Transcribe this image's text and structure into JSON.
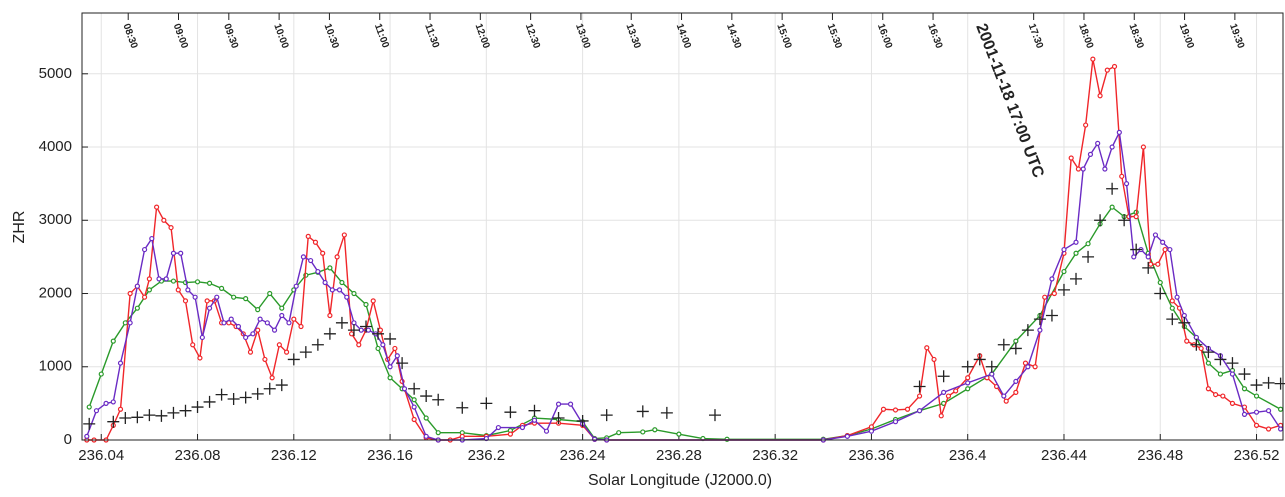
{
  "chart_data": {
    "type": "line",
    "xlabel": "Solar Longitude (J2000.0)",
    "ylabel": "ZHR",
    "annotation": "2001-11-18 17:00 UTC",
    "xlim": [
      236.032,
      236.531
    ],
    "ylim": [
      0,
      5830
    ],
    "xticks": [
      236.04,
      236.08,
      236.12,
      236.16,
      236.2,
      236.24,
      236.28,
      236.32,
      236.36,
      236.4,
      236.44,
      236.48,
      236.52
    ],
    "yticks": [
      0,
      1000,
      2000,
      3000,
      4000,
      5000
    ],
    "x2ticks": [
      {
        "value": 236.0512,
        "label": "08:30"
      },
      {
        "value": 236.0721,
        "label": "09:00"
      },
      {
        "value": 236.093,
        "label": "09:30"
      },
      {
        "value": 236.1139,
        "label": "10:00"
      },
      {
        "value": 236.1348,
        "label": "10:30"
      },
      {
        "value": 236.1557,
        "label": "11:00"
      },
      {
        "value": 236.1766,
        "label": "11:30"
      },
      {
        "value": 236.1975,
        "label": "12:00"
      },
      {
        "value": 236.2184,
        "label": "12:30"
      },
      {
        "value": 236.2393,
        "label": "13:00"
      },
      {
        "value": 236.2602,
        "label": "13:30"
      },
      {
        "value": 236.2811,
        "label": "14:00"
      },
      {
        "value": 236.302,
        "label": "14:30"
      },
      {
        "value": 236.3229,
        "label": "15:00"
      },
      {
        "value": 236.3438,
        "label": "15:30"
      },
      {
        "value": 236.3647,
        "label": "16:00"
      },
      {
        "value": 236.3856,
        "label": "16:30"
      },
      {
        "value": 236.4274,
        "label": "17:30"
      },
      {
        "value": 236.4483,
        "label": "18:00"
      },
      {
        "value": 236.4692,
        "label": "18:30"
      },
      {
        "value": 236.4901,
        "label": "19:00"
      },
      {
        "value": 236.511,
        "label": "19:30"
      }
    ],
    "grid": true,
    "series": [
      {
        "type": "line",
        "color": "#2a9a2a",
        "x": [
          236.035,
          236.04,
          236.045,
          236.05,
          236.055,
          236.06,
          236.065,
          236.07,
          236.075,
          236.08,
          236.085,
          236.09,
          236.095,
          236.1,
          236.105,
          236.11,
          236.115,
          236.12,
          236.125,
          236.13,
          236.135,
          236.14,
          236.145,
          236.15,
          236.155,
          236.16,
          236.165,
          236.17,
          236.175,
          236.18,
          236.19,
          236.2,
          236.21,
          236.22,
          236.23,
          236.24,
          236.245,
          236.25,
          236.255,
          236.265,
          236.27,
          236.28,
          236.29,
          236.3,
          236.34,
          236.35,
          236.36,
          236.37,
          236.38,
          236.39,
          236.4,
          236.41,
          236.42,
          236.43,
          236.44,
          236.445,
          236.45,
          236.455,
          236.46,
          236.465,
          236.47,
          236.475,
          236.48,
          236.485,
          236.49,
          236.495,
          236.5,
          236.505,
          236.51,
          236.515,
          236.52,
          236.53
        ],
        "values": [
          450,
          900,
          1350,
          1600,
          1800,
          2050,
          2170,
          2170,
          2150,
          2160,
          2140,
          2070,
          1950,
          1930,
          1780,
          2000,
          1800,
          2050,
          2250,
          2290,
          2350,
          2150,
          2000,
          1850,
          1250,
          850,
          700,
          550,
          300,
          100,
          100,
          60,
          130,
          300,
          280,
          250,
          20,
          30,
          100,
          110,
          140,
          80,
          20,
          10,
          10,
          60,
          150,
          280,
          400,
          500,
          700,
          900,
          1350,
          1700,
          2300,
          2550,
          2680,
          2950,
          3180,
          3050,
          3110,
          2550,
          2150,
          1800,
          1550,
          1400,
          1050,
          900,
          950,
          700,
          600,
          420
        ]
      },
      {
        "type": "line",
        "color": "#f0262a",
        "x": [
          236.034,
          236.037,
          236.042,
          236.045,
          236.048,
          236.052,
          236.055,
          236.058,
          236.06,
          236.063,
          236.066,
          236.069,
          236.072,
          236.075,
          236.078,
          236.081,
          236.084,
          236.087,
          236.09,
          236.093,
          236.096,
          236.099,
          236.102,
          236.105,
          236.108,
          236.111,
          236.114,
          236.117,
          236.12,
          236.123,
          236.126,
          236.129,
          236.132,
          236.135,
          236.138,
          236.141,
          236.144,
          236.147,
          236.15,
          236.153,
          236.156,
          236.159,
          236.162,
          236.165,
          236.17,
          236.175,
          236.18,
          236.185,
          236.19,
          236.2,
          236.21,
          236.215,
          236.22,
          236.23,
          236.24,
          236.245,
          236.25,
          236.34,
          236.35,
          236.36,
          236.365,
          236.37,
          236.375,
          236.38,
          236.383,
          236.386,
          236.389,
          236.392,
          236.395,
          236.4,
          236.405,
          236.408,
          236.412,
          236.416,
          236.42,
          236.424,
          236.428,
          236.432,
          236.436,
          236.44,
          236.443,
          236.446,
          236.449,
          236.452,
          236.455,
          236.458,
          236.461,
          236.464,
          236.467,
          236.47,
          236.473,
          236.476,
          236.479,
          236.482,
          236.485,
          236.488,
          236.491,
          236.494,
          236.497,
          236.5,
          236.503,
          236.506,
          236.51,
          236.515,
          236.52,
          236.525,
          236.53
        ],
        "values": [
          0,
          0,
          0,
          200,
          420,
          2000,
          2100,
          1950,
          2200,
          3180,
          3000,
          2900,
          2050,
          1900,
          1300,
          1120,
          1900,
          1900,
          1600,
          1600,
          1550,
          1450,
          1200,
          1500,
          1100,
          850,
          1300,
          1200,
          1650,
          1550,
          2780,
          2700,
          2550,
          1700,
          2500,
          2800,
          1450,
          1300,
          1500,
          1900,
          1500,
          1100,
          1250,
          800,
          280,
          30,
          0,
          0,
          50,
          50,
          80,
          200,
          230,
          230,
          200,
          10,
          0,
          0,
          60,
          180,
          420,
          410,
          420,
          600,
          1260,
          1100,
          330,
          600,
          670,
          850,
          1150,
          850,
          730,
          530,
          650,
          1050,
          1000,
          1950,
          2000,
          2550,
          3850,
          3700,
          4300,
          5200,
          4700,
          5050,
          5100,
          3600,
          3050,
          3050,
          4000,
          2400,
          2400,
          2600,
          1900,
          1800,
          1350,
          1300,
          1250,
          700,
          620,
          600,
          500,
          450,
          200,
          150,
          200
        ]
      },
      {
        "type": "line",
        "color": "#6a2bc4",
        "x": [
          236.034,
          236.038,
          236.042,
          236.045,
          236.048,
          236.052,
          236.055,
          236.058,
          236.061,
          236.064,
          236.067,
          236.07,
          236.073,
          236.076,
          236.079,
          236.082,
          236.085,
          236.088,
          236.091,
          236.094,
          236.097,
          236.1,
          236.103,
          236.106,
          236.109,
          236.112,
          236.115,
          236.118,
          236.121,
          236.124,
          236.127,
          236.13,
          236.133,
          236.136,
          236.139,
          236.142,
          236.145,
          236.148,
          236.151,
          236.154,
          236.157,
          236.16,
          236.163,
          236.166,
          236.17,
          236.175,
          236.18,
          236.19,
          236.2,
          236.205,
          236.215,
          236.22,
          236.225,
          236.23,
          236.235,
          236.24,
          236.245,
          236.25,
          236.34,
          236.35,
          236.36,
          236.37,
          236.38,
          236.39,
          236.4,
          236.41,
          236.415,
          236.42,
          236.425,
          236.43,
          236.435,
          236.44,
          236.445,
          236.448,
          236.451,
          236.454,
          236.457,
          236.46,
          236.463,
          236.466,
          236.469,
          236.472,
          236.475,
          236.478,
          236.481,
          236.484,
          236.487,
          236.49,
          236.495,
          236.5,
          236.505,
          236.51,
          236.515,
          236.52,
          236.525,
          236.53
        ],
        "values": [
          50,
          400,
          500,
          520,
          1050,
          1600,
          2100,
          2600,
          2750,
          2200,
          2200,
          2550,
          2550,
          2050,
          1950,
          1400,
          1800,
          1950,
          1600,
          1650,
          1550,
          1400,
          1450,
          1650,
          1600,
          1500,
          1700,
          1600,
          2100,
          2500,
          2450,
          2300,
          2150,
          2050,
          2050,
          1950,
          1600,
          1500,
          1500,
          1450,
          1300,
          1000,
          1150,
          700,
          450,
          50,
          0,
          0,
          20,
          170,
          170,
          270,
          120,
          490,
          490,
          220,
          10,
          0,
          0,
          50,
          120,
          250,
          400,
          650,
          780,
          900,
          600,
          800,
          1000,
          1500,
          2200,
          2600,
          2700,
          3700,
          3900,
          4050,
          3700,
          4000,
          4200,
          3500,
          2500,
          2600,
          2500,
          2800,
          2700,
          2600,
          1950,
          1700,
          1400,
          1250,
          1150,
          900,
          350,
          380,
          400,
          150
        ]
      },
      {
        "type": "scatter",
        "color": "#222222",
        "x": [
          236.035,
          236.045,
          236.05,
          236.055,
          236.06,
          236.065,
          236.07,
          236.075,
          236.08,
          236.085,
          236.09,
          236.095,
          236.1,
          236.105,
          236.11,
          236.115,
          236.12,
          236.125,
          236.13,
          236.135,
          236.14,
          236.145,
          236.15,
          236.155,
          236.16,
          236.165,
          236.17,
          236.175,
          236.18,
          236.19,
          236.2,
          236.21,
          236.22,
          236.23,
          236.24,
          236.25,
          236.265,
          236.275,
          236.295,
          236.38,
          236.39,
          236.4,
          236.405,
          236.41,
          236.415,
          236.42,
          236.425,
          236.43,
          236.435,
          236.44,
          236.445,
          236.45,
          236.455,
          236.46,
          236.465,
          236.47,
          236.475,
          236.48,
          236.485,
          236.49,
          236.495,
          236.5,
          236.505,
          236.51,
          236.515,
          236.52,
          236.525,
          236.53
        ],
        "values": [
          220,
          250,
          300,
          310,
          340,
          330,
          370,
          400,
          450,
          520,
          620,
          560,
          580,
          630,
          700,
          750,
          1100,
          1200,
          1300,
          1450,
          1600,
          1500,
          1550,
          1450,
          1380,
          1050,
          700,
          600,
          550,
          440,
          500,
          380,
          400,
          300,
          260,
          340,
          390,
          370,
          340,
          730,
          870,
          1000,
          1100,
          1000,
          1300,
          1250,
          1500,
          1650,
          1700,
          2050,
          2200,
          2500,
          3000,
          3430,
          3000,
          2600,
          2350,
          2000,
          1650,
          1600,
          1300,
          1200,
          1100,
          1050,
          900,
          750,
          780,
          770
        ]
      }
    ]
  }
}
